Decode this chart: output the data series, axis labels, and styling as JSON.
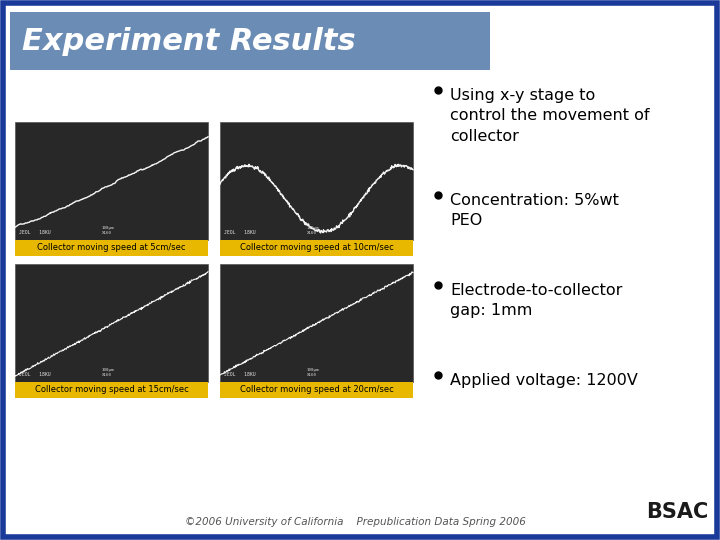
{
  "title": "Experiment Results",
  "title_bg_color": "#6b8db5",
  "title_text_color": "#ffffff",
  "slide_bg_color": "#ffffff",
  "border_color": "#1a3a9a",
  "border_width": 4,
  "bullet_points": [
    "Using x-y stage to\ncontrol the movement of\ncollector",
    "Concentration: 5%wt\nPEO",
    "Electrode-to-collector\ngap: 1mm",
    "Applied voltage: 1200V"
  ],
  "captions": [
    "Collector moving speed at 5cm/sec",
    "Collector moving speed at 10cm/sec",
    "Collector moving speed at 15cm/sec",
    "Collector moving speed at 20cm/sec"
  ],
  "caption_bg_color": "#e8b800",
  "caption_text_color": "#000000",
  "footer_text": "©2006 University of California    Prepublication Data Spring 2006",
  "footer_color": "#555555",
  "image_bg_color": "#282828"
}
